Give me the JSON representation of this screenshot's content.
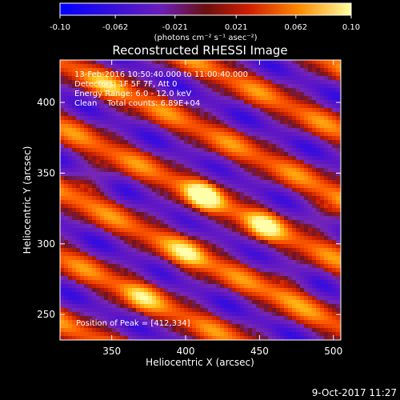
{
  "chart_data": {
    "type": "heatmap",
    "title": "Reconstructed RHESSI Image",
    "xlabel": "Heliocentric X (arcsec)",
    "ylabel": "Heliocentric Y (arcsec)",
    "xlim": [
      315,
      505
    ],
    "ylim": [
      232,
      430
    ],
    "x_ticks": [
      350,
      400,
      450,
      500
    ],
    "y_ticks": [
      250,
      300,
      350,
      400
    ],
    "colorbar": {
      "range": [
        -0.1,
        0.1
      ],
      "ticks": [
        -0.1,
        -0.062,
        -0.021,
        0.021,
        0.062,
        0.1
      ],
      "tick_labels": [
        "-0.10",
        "-0.062",
        "-0.021",
        "0.021",
        "0.062",
        "0.10"
      ],
      "unit_label": "(photons cm⁻² s⁻¹ asec⁻²)"
    },
    "annotations": [
      "13-Feb-2016 10:50:40.000 to 11:00:40.000",
      "Detectors: 1F 5F 7F, Att 0",
      "Energy Range: 6.0 - 12.0 keV",
      "Clean    Total counts: 6.89E+04"
    ],
    "peak_label": "Position of Peak = [412,334]",
    "peak": [
      412,
      334
    ],
    "hotspots": [
      {
        "x": 412,
        "y": 334,
        "v": 1.0
      },
      {
        "x": 452,
        "y": 312,
        "v": 0.78
      },
      {
        "x": 403,
        "y": 292,
        "v": 0.72
      },
      {
        "x": 368,
        "y": 262,
        "v": 0.55
      },
      {
        "x": 498,
        "y": 322,
        "v": 0.6
      },
      {
        "x": 335,
        "y": 345,
        "v": 0.55
      },
      {
        "x": 350,
        "y": 410,
        "v": 0.45
      },
      {
        "x": 470,
        "y": 270,
        "v": 0.45
      }
    ]
  },
  "footer": {
    "date": "9-Oct-2017 11:27"
  },
  "colors": {
    "background": "#000000",
    "colormap": [
      "#0000ff",
      "#6010b0",
      "#8a30c8",
      "#c02000",
      "#ff4000",
      "#ff9a00",
      "#ffff40"
    ]
  }
}
